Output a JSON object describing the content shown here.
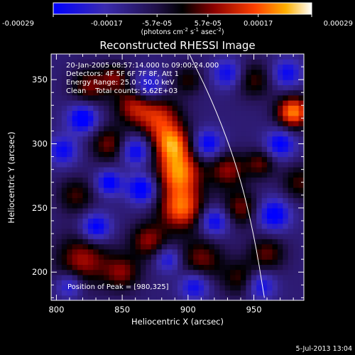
{
  "chart_data": {
    "type": "heatmap",
    "title": "Reconstructed RHESSI Image",
    "xlabel": "Heliocentric X (arcsec)",
    "ylabel": "Heliocentric Y (arcsec)",
    "xlim": [
      796,
      988
    ],
    "ylim": [
      178,
      370
    ],
    "x_ticks": [
      800,
      850,
      900,
      950
    ],
    "y_ticks": [
      200,
      250,
      300,
      350
    ],
    "colorbar": {
      "min": -0.00029,
      "max": 0.00029,
      "ticks": [
        -0.00029,
        -0.00017,
        -5.7e-05,
        5.7e-05,
        0.00017,
        0.00029
      ],
      "tick_labels": [
        "-0.00029",
        "-0.00017",
        "-5.7e-05",
        "5.7e-05",
        "0.00017",
        "0.00029"
      ],
      "unit_label": "(photons cm",
      "unit_sup1": "-2",
      "unit_mid": " s",
      "unit_sup2": "-1",
      "unit_mid2": " asec",
      "unit_sup3": "-2",
      "unit_end": ")"
    },
    "info_lines": [
      "20-Jan-2005 08:57:14.000 to 09:00:24.000",
      "Detectors: 4F 5F 6F 7F 8F, Att 1",
      "Energy Range: 25.0 - 50.0 keV",
      "Clean    Total counts: 5.62E+03"
    ],
    "peak_label": "Position of Peak = [980,325]",
    "peak": [
      980,
      325
    ],
    "limb_curve": [
      [
        900,
        372
      ],
      [
        920,
        330
      ],
      [
        938,
        280
      ],
      [
        950,
        230
      ],
      [
        958,
        180
      ]
    ],
    "blobs_note": "image intensity field approximated by sources [x, y, sigma_arcsec, amplitude_fraction]",
    "sources": [
      [
        893,
        278,
        12,
        1.0
      ],
      [
        888,
        300,
        10,
        0.9
      ],
      [
        895,
        250,
        12,
        0.95
      ],
      [
        878,
        320,
        12,
        0.75
      ],
      [
        858,
        330,
        10,
        0.6
      ],
      [
        840,
        300,
        10,
        0.55
      ],
      [
        825,
        345,
        10,
        0.55
      ],
      [
        845,
        352,
        8,
        0.5
      ],
      [
        820,
        210,
        14,
        0.65
      ],
      [
        850,
        200,
        10,
        0.55
      ],
      [
        870,
        225,
        10,
        0.6
      ],
      [
        910,
        210,
        12,
        0.55
      ],
      [
        930,
        280,
        10,
        0.6
      ],
      [
        940,
        250,
        10,
        0.55
      ],
      [
        955,
        285,
        8,
        0.5
      ],
      [
        980,
        325,
        9,
        1.05
      ],
      [
        960,
        215,
        10,
        0.5
      ],
      [
        985,
        270,
        10,
        0.45
      ],
      [
        950,
        350,
        10,
        0.45
      ],
      [
        940,
        195,
        10,
        0.45
      ],
      [
        815,
        260,
        10,
        0.45
      ],
      [
        900,
        350,
        8,
        0.4
      ],
      [
        865,
        265,
        8,
        -0.8
      ],
      [
        860,
        295,
        8,
        -0.7
      ],
      [
        820,
        320,
        8,
        -0.8
      ],
      [
        870,
        345,
        8,
        -0.6
      ],
      [
        830,
        235,
        8,
        -0.75
      ],
      [
        915,
        300,
        8,
        -0.7
      ],
      [
        920,
        240,
        8,
        -0.7
      ],
      [
        905,
        190,
        8,
        -0.65
      ],
      [
        965,
        245,
        9,
        -0.75
      ],
      [
        970,
        300,
        8,
        -0.7
      ],
      [
        955,
        190,
        8,
        -0.6
      ],
      [
        840,
        270,
        7,
        -0.7
      ],
      [
        805,
        295,
        8,
        -0.6
      ],
      [
        885,
        210,
        7,
        -0.55
      ],
      [
        930,
        355,
        8,
        -0.6
      ],
      [
        975,
        355,
        8,
        -0.6
      ],
      [
        810,
        190,
        7,
        -0.55
      ]
    ]
  },
  "footer": {
    "date_stamp": "5-Jul-2013 13:04"
  }
}
